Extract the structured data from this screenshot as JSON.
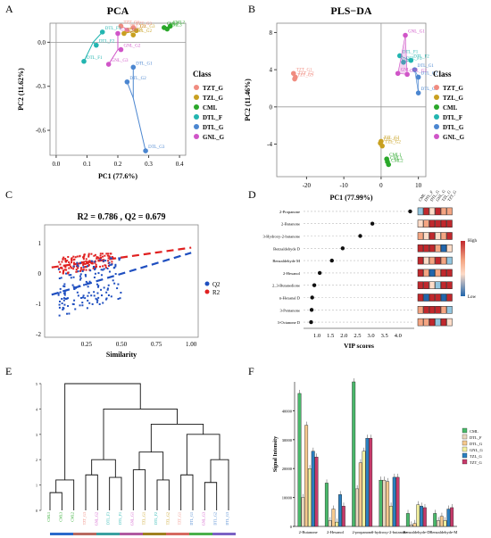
{
  "figure": {
    "panel_labels": [
      "A",
      "B",
      "C",
      "D",
      "E",
      "F"
    ]
  },
  "colors": {
    "TZT_G": "#f08c80",
    "TZL_G": "#c8a020",
    "CML": "#2aa82a",
    "DTL_F": "#22b5b0",
    "DTL_G": "#4b86d0",
    "GNL_G": "#d055c8",
    "Q2": "#1f4fc0",
    "R2": "#e02020"
  },
  "chart_data": [
    {
      "id": "A",
      "type": "scatter",
      "title": "PCA",
      "xlabel": "PC1 (77.6%)",
      "ylabel": "PC2 (11.62%)",
      "xlim": [
        -0.02,
        0.42
      ],
      "ylim": [
        -0.77,
        0.13
      ],
      "xticks": [
        "0.0",
        "0.1",
        "0.2",
        "0.3",
        "0.4"
      ],
      "xtick_values": [
        0.0,
        0.1,
        0.2,
        0.3,
        0.4
      ],
      "yticks": [
        "0.0",
        "-0.3",
        "-0.6"
      ],
      "ytick_values": [
        0.0,
        -0.3,
        -0.6
      ],
      "legend_title": "Class",
      "legend": [
        "TZT_G",
        "TZL_G",
        "CML",
        "DTL_F",
        "DTL_G",
        "GNL_G"
      ],
      "groups": [
        {
          "name": "TZT_G",
          "centroid": [
            0.23,
            0.09
          ],
          "points": [
            [
              0.21,
              0.11
            ],
            [
              0.23,
              0.08
            ],
            [
              0.25,
              0.1
            ]
          ],
          "labels": [
            "TZT_G1",
            "TZT_G2",
            "TZT_G3"
          ]
        },
        {
          "name": "TZL_G",
          "centroid": [
            0.24,
            0.07
          ],
          "points": [
            [
              0.22,
              0.06
            ],
            [
              0.25,
              0.05
            ],
            [
              0.26,
              0.08
            ]
          ],
          "labels": [
            "TZL_G1",
            "TZL_G2",
            "TZL_G3"
          ]
        },
        {
          "name": "CML",
          "centroid": [
            0.36,
            0.1
          ],
          "points": [
            [
              0.35,
              0.1
            ],
            [
              0.37,
              0.11
            ],
            [
              0.36,
              0.09
            ]
          ],
          "labels": [
            "CML1",
            "CML2",
            "CML3"
          ]
        },
        {
          "name": "DTL_F",
          "centroid": [
            0.12,
            0.0
          ],
          "points": [
            [
              0.09,
              -0.13
            ],
            [
              0.13,
              -0.02
            ],
            [
              0.15,
              0.07
            ]
          ],
          "labels": [
            "DTL_F1",
            "DTL_F2",
            "DTL_F3"
          ]
        },
        {
          "name": "DTL_G",
          "centroid": [
            0.25,
            -0.38
          ],
          "points": [
            [
              0.25,
              -0.17
            ],
            [
              0.23,
              -0.27
            ],
            [
              0.29,
              -0.74
            ]
          ],
          "labels": [
            "DTL_G1",
            "DTL_G2",
            "DTL_G3"
          ]
        },
        {
          "name": "GNL_G",
          "centroid": [
            0.2,
            -0.05
          ],
          "points": [
            [
              0.2,
              0.06
            ],
            [
              0.21,
              -0.05
            ],
            [
              0.17,
              -0.15
            ]
          ],
          "labels": [
            "GNL_G1",
            "GNL_G2",
            "GNL_G3"
          ]
        }
      ]
    },
    {
      "id": "B",
      "type": "scatter",
      "title": "PLS−DA",
      "xlabel": "PC1 (77.99%)",
      "ylabel": "PC2 (11.46%)",
      "xlim": [
        -28,
        12
      ],
      "ylim": [
        -7.5,
        9
      ],
      "xticks": [
        "-20",
        "-10",
        "0",
        "10"
      ],
      "xtick_values": [
        -20,
        -10,
        0,
        10
      ],
      "yticks": [
        "8",
        "4",
        "0",
        "-4"
      ],
      "ytick_values": [
        8,
        4,
        0,
        -4
      ],
      "legend_title": "Class",
      "legend": [
        "TZT_G",
        "TZL_G",
        "CML",
        "DTL_F",
        "DTL_G",
        "GNL_G"
      ],
      "groups": [
        {
          "name": "TZT_G",
          "points": [
            [
              -23.5,
              3.6
            ],
            [
              -23,
              3.2
            ],
            [
              -23.2,
              3.0
            ]
          ],
          "labels": [
            "TZT_G1",
            "TZT_G2",
            "TZT_G3"
          ]
        },
        {
          "name": "TZL_G",
          "points": [
            [
              0,
              -3.7
            ],
            [
              0.3,
              -4.2
            ],
            [
              -0.2,
              -3.9
            ]
          ],
          "labels": [
            "TZL_G1",
            "TZL_G2",
            "TZL_G3"
          ]
        },
        {
          "name": "CML",
          "points": [
            [
              1.5,
              -5.6
            ],
            [
              2.0,
              -6.2
            ],
            [
              1.7,
              -5.9
            ]
          ],
          "labels": [
            "CML1",
            "CML2",
            "CML3"
          ]
        },
        {
          "name": "DTL_F",
          "points": [
            [
              5,
              5.5
            ],
            [
              8,
              5.0
            ],
            [
              6,
              4.8
            ]
          ],
          "labels": [
            "DTL_F1",
            "DTL_F2",
            "DTL_F3"
          ]
        },
        {
          "name": "DTL_G",
          "points": [
            [
              9,
              4.0
            ],
            [
              10,
              3.2
            ],
            [
              10,
              1.5
            ]
          ],
          "labels": [
            "DTL_G1",
            "DTL_G2",
            "DTL_G3"
          ]
        },
        {
          "name": "GNL_G",
          "points": [
            [
              6.5,
              7.7
            ],
            [
              7,
              3.5
            ],
            [
              4.5,
              3.6
            ]
          ],
          "labels": [
            "GNL_G1",
            "GNL_G2",
            "GNL_G3"
          ]
        }
      ]
    },
    {
      "id": "C",
      "type": "scatter",
      "title": "R2 = 0.786 , Q2 = 0.679",
      "xlabel": "Similarity",
      "ylabel": "",
      "xlim": [
        -0.05,
        1.05
      ],
      "ylim": [
        -2.1,
        1.6
      ],
      "xticks": [
        "0.25",
        "0.50",
        "0.75",
        "1.00"
      ],
      "xtick_values": [
        0.25,
        0.5,
        0.75,
        1.0
      ],
      "yticks": [
        "1",
        "0",
        "-1",
        "-2"
      ],
      "ytick_values": [
        1,
        0,
        -1,
        -2
      ],
      "legend": [
        "Q2",
        "R2"
      ],
      "series": [
        {
          "name": "R2",
          "trend": [
            [
              0.0,
              0.2
            ],
            [
              1.0,
              0.85
            ]
          ],
          "cloud": {
            "x": [
              0.05,
              0.45
            ],
            "y": [
              0.0,
              0.65
            ]
          }
        },
        {
          "name": "Q2",
          "trend": [
            [
              0.0,
              -0.7
            ],
            [
              1.0,
              0.68
            ]
          ],
          "cloud": {
            "x": [
              0.05,
              0.5
            ],
            "y": [
              -2.0,
              0.5
            ]
          }
        }
      ]
    },
    {
      "id": "D",
      "type": "scatter",
      "xlabel": "VIP scores",
      "xlim": [
        0.5,
        4.6
      ],
      "xticks": [
        "1.0",
        "1.5",
        "2.0",
        "2.5",
        "3.0",
        "3.5",
        "4.0"
      ],
      "xtick_values": [
        1.0,
        1.5,
        2.0,
        2.5,
        3.0,
        3.5,
        4.0
      ],
      "categories": [
        "2-Propanone",
        "2-Butanone",
        "3-Hydroxy-2-butanone",
        "Benzaldehyde D",
        "Benzaldehyde M",
        "2-Hexanol",
        "2_3-Butanedione",
        "n-Hexanal D",
        "3-Pentanone",
        "3-Octanone D"
      ],
      "values": [
        4.45,
        3.05,
        2.6,
        1.95,
        1.55,
        1.1,
        0.9,
        0.82,
        0.8,
        0.78
      ],
      "heatmap_columns": [
        "CML",
        "DTL_F",
        "DTL_G",
        "GNL_G",
        "TZL_G",
        "TZT_G"
      ],
      "heatmap_legend": {
        "high": "High",
        "low": "Low"
      }
    },
    {
      "id": "E",
      "type": "dendrogram",
      "leaves": [
        "CML1",
        "CML3",
        "CML2",
        "TZT_G3",
        "GNL_G2",
        "DTL_F3",
        "DTL_F1",
        "GNL_G1",
        "TZL_G1",
        "DTL_F2",
        "TZL_G2",
        "TZT_G1",
        "DTL_G1",
        "GNL_G3",
        "DTL_G2",
        "DTL_G3"
      ],
      "yticks": [
        "5",
        "4",
        "3",
        "2",
        "1",
        "0"
      ],
      "ytick_values": [
        5,
        4,
        3,
        2,
        1,
        0
      ]
    },
    {
      "id": "F",
      "type": "bar",
      "ylabel": "Signal Intensity",
      "ylim": [
        0,
        50000
      ],
      "yticks": [
        "40000",
        "30000",
        "20000",
        "10000",
        "0"
      ],
      "ytick_values": [
        40000,
        30000,
        20000,
        10000,
        0
      ],
      "categories": [
        "2-Butanone",
        "2-Hexanol",
        "2-propanone",
        "3-hydroxy-2-butanone",
        "Benzaldehyde-D",
        "Benzaldehyde-M"
      ],
      "series": [
        {
          "name": "CML",
          "values": [
            46000,
            15000,
            50000,
            16000,
            4500,
            4500
          ]
        },
        {
          "name": "DTL_F",
          "values": [
            10000,
            2000,
            13000,
            16000,
            500,
            2000
          ]
        },
        {
          "name": "DTL_G",
          "values": [
            35000,
            6000,
            22000,
            15500,
            1000,
            3500
          ]
        },
        {
          "name": "GNL_G",
          "values": [
            20000,
            1500,
            26000,
            7000,
            7500,
            2000
          ]
        },
        {
          "name": "TZL_G",
          "values": [
            26000,
            11000,
            30500,
            17000,
            7000,
            6000
          ]
        },
        {
          "name": "TZT_G",
          "values": [
            24000,
            7000,
            30500,
            17000,
            6500,
            6500
          ]
        }
      ]
    }
  ]
}
